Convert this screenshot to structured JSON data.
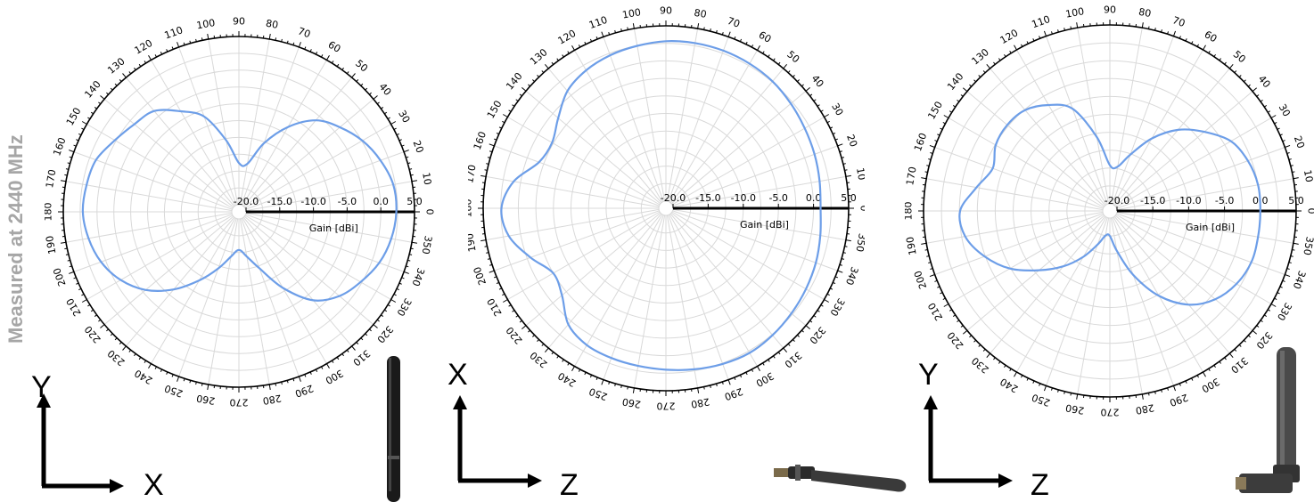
{
  "side_title": "Measured at 2440 MHz",
  "colors": {
    "trace": "#6d9ee8",
    "grid": "#d9d9d9",
    "axis": "#000000",
    "title": "#a6a6a6"
  },
  "chart_data": [
    {
      "type": "polar-line",
      "angle_ticks": [
        "0",
        "10",
        "20",
        "30",
        "40",
        "50",
        "60",
        "70",
        "80",
        "90",
        "100",
        "110",
        "120",
        "130",
        "140",
        "150",
        "160",
        "170",
        "180",
        "190",
        "200",
        "210",
        "220",
        "230",
        "240",
        "250",
        "260",
        "270",
        "280",
        "290",
        "300",
        "310",
        "320",
        "330",
        "340",
        "350"
      ],
      "r_ticks": [
        "-20.0",
        "-15.0",
        "-10.0",
        "-5.0",
        "0.0",
        "5.0"
      ],
      "r_range": [
        -20,
        5
      ],
      "r_label": "Gain [dBi]",
      "axes": {
        "vertical": "Y",
        "horizontal": "X"
      },
      "series": [
        {
          "theta": [
            0,
            10,
            20,
            30,
            40,
            50,
            60,
            70,
            80,
            90,
            100,
            110,
            120,
            130,
            140,
            150,
            160,
            170,
            180,
            190,
            200,
            210,
            220,
            230,
            240,
            250,
            260,
            270,
            280,
            290,
            300,
            310,
            320,
            330,
            340,
            350
          ],
          "gain": [
            2.3,
            2.2,
            1.3,
            0.1,
            -1.5,
            -3.3,
            -6.5,
            -10.2,
            -13.8,
            -13.8,
            -10.3,
            -6.0,
            -3.8,
            -1.5,
            -0.8,
            0.2,
            1.5,
            1.9,
            2.1,
            1.6,
            0.7,
            -0.8,
            -3.0,
            -6.0,
            -9.3,
            -12.1,
            -14.3,
            -15.4,
            -14.3,
            -12.1,
            -8.0,
            -3.9,
            -1.6,
            -0.2,
            1.1,
            1.9
          ]
        }
      ]
    },
    {
      "type": "polar-line",
      "angle_ticks": [
        "0",
        "10",
        "20",
        "30",
        "40",
        "50",
        "60",
        "70",
        "80",
        "90",
        "100",
        "110",
        "120",
        "130",
        "140",
        "150",
        "160",
        "170",
        "180",
        "190",
        "200",
        "210",
        "220",
        "230",
        "240",
        "250",
        "260",
        "270",
        "280",
        "290",
        "300",
        "310",
        "320",
        "330",
        "340",
        "350"
      ],
      "r_ticks": [
        "-20.0",
        "-15.0",
        "-10.0",
        "-5.0",
        "0.0",
        "5.0"
      ],
      "r_range": [
        -20,
        5
      ],
      "r_label": "Gain [dBi]",
      "axes": {
        "vertical": "X",
        "horizontal": "Z"
      },
      "series": [
        {
          "theta": [
            0,
            10,
            20,
            30,
            40,
            50,
            60,
            70,
            80,
            90,
            100,
            110,
            120,
            130,
            140,
            150,
            160,
            170,
            180,
            190,
            200,
            210,
            220,
            230,
            240,
            250,
            260,
            270,
            280,
            290,
            300,
            310,
            320,
            330,
            340,
            350
          ],
          "gain": [
            1.0,
            1.2,
            1.5,
            1.8,
            2.2,
            2.6,
            2.8,
            2.9,
            2.9,
            2.8,
            2.5,
            2.2,
            1.7,
            0.8,
            -1.0,
            -2.3,
            -1.8,
            1.0,
            2.4,
            1.7,
            -0.5,
            -2.5,
            -1.7,
            0.6,
            1.5,
            1.7,
            1.8,
            2.0,
            2.3,
            2.6,
            2.8,
            2.6,
            2.3,
            2.0,
            1.7,
            1.3
          ]
        }
      ]
    },
    {
      "type": "polar-line",
      "angle_ticks": [
        "0",
        "10",
        "20",
        "30",
        "40",
        "50",
        "60",
        "70",
        "80",
        "90",
        "100",
        "110",
        "120",
        "130",
        "140",
        "150",
        "160",
        "170",
        "180",
        "190",
        "200",
        "210",
        "220",
        "230",
        "240",
        "250",
        "260",
        "270",
        "280",
        "290",
        "300",
        "310",
        "320",
        "330",
        "340",
        "350"
      ],
      "r_ticks": [
        "-20.0",
        "-15.0",
        "-10.0",
        "-5.0",
        "0.0",
        "5.0"
      ],
      "r_range": [
        -20,
        5
      ],
      "r_label": "Gain [dBi]",
      "axes": {
        "vertical": "Y",
        "horizontal": "Z"
      },
      "series": [
        {
          "theta": [
            0,
            10,
            20,
            30,
            40,
            50,
            60,
            70,
            80,
            90,
            100,
            110,
            120,
            130,
            140,
            150,
            160,
            170,
            180,
            190,
            200,
            210,
            220,
            230,
            240,
            250,
            260,
            270,
            280,
            290,
            300,
            310,
            320,
            330,
            340,
            350
          ],
          "gain": [
            0.0,
            0.0,
            -0.5,
            -1.5,
            -3.8,
            -6.2,
            -9.3,
            -12.6,
            -14.7,
            -14.6,
            -10.5,
            -5.8,
            -3.9,
            -2.6,
            -2.3,
            -2.6,
            -3.6,
            -2.1,
            -0.1,
            -0.5,
            -2.4,
            -4.9,
            -8.1,
            -10.9,
            -13.6,
            -16.0,
            -17.5,
            -17.5,
            -15.3,
            -11.5,
            -7.3,
            -3.9,
            -1.8,
            -0.6,
            0.0,
            0.0
          ]
        }
      ]
    }
  ]
}
